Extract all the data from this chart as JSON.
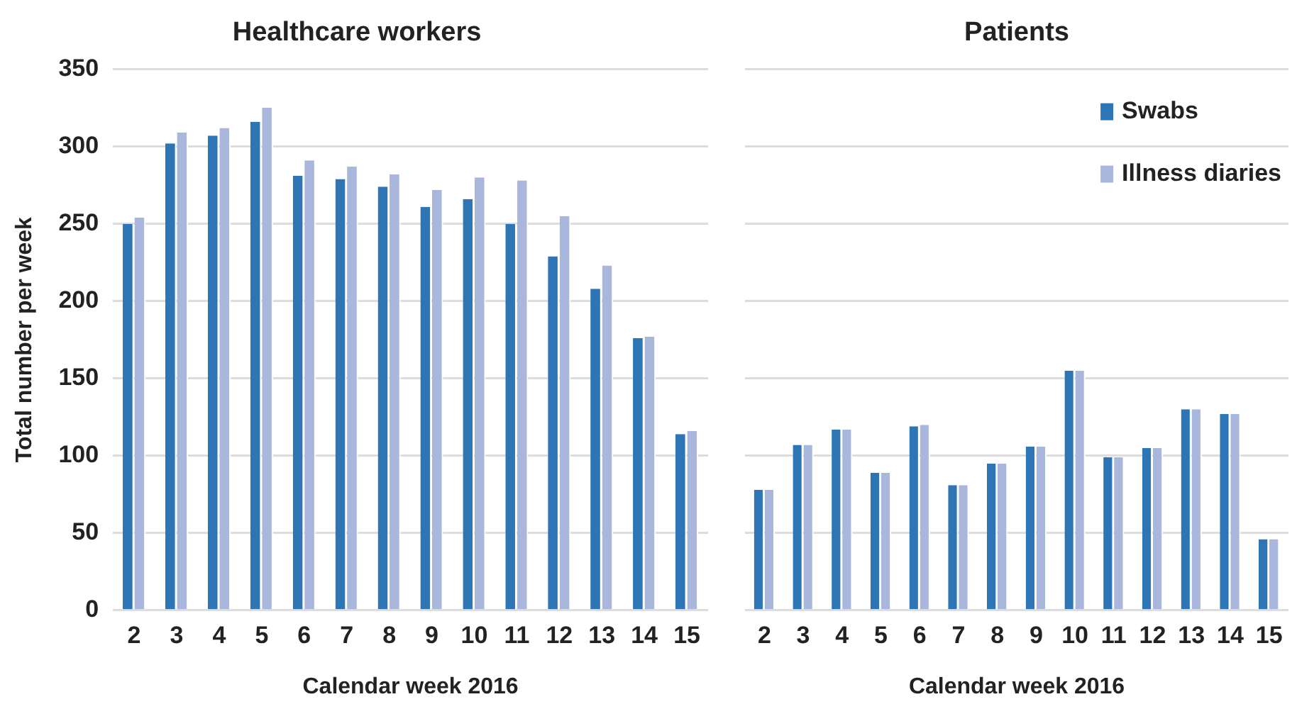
{
  "chart_data": [
    {
      "type": "bar",
      "title": "Healthcare workers",
      "xlabel": "Calendar week 2016",
      "ylabel": "Total number per week",
      "categories": [
        "2",
        "3",
        "4",
        "5",
        "6",
        "7",
        "8",
        "9",
        "10",
        "11",
        "12",
        "13",
        "14",
        "15"
      ],
      "series": [
        {
          "color": "#2e75b6",
          "values": [
            250,
            302,
            307,
            316,
            281,
            279,
            274,
            261,
            266,
            250,
            229,
            208,
            176,
            114
          ]
        },
        {
          "color": "#a9b7dc",
          "values": [
            254,
            309,
            312,
            325,
            291,
            287,
            282,
            272,
            280,
            278,
            255,
            223,
            177,
            116
          ]
        }
      ],
      "ylim": [
        0,
        350
      ],
      "yticks": [
        0,
        50,
        100,
        150,
        200,
        250,
        300,
        350
      ],
      "grid": "y",
      "legend": false
    },
    {
      "type": "bar",
      "title": "Patients",
      "xlabel": "Calendar week 2016",
      "categories": [
        "2",
        "3",
        "4",
        "5",
        "6",
        "7",
        "8",
        "9",
        "10",
        "11",
        "12",
        "13",
        "14",
        "15"
      ],
      "series": [
        {
          "name": "Swabs",
          "color": "#2e75b6",
          "values": [
            78,
            107,
            117,
            89,
            119,
            81,
            95,
            106,
            155,
            99,
            105,
            130,
            127,
            46
          ]
        },
        {
          "name": "Illness diaries",
          "color": "#a9b7dc",
          "values": [
            78,
            107,
            117,
            89,
            120,
            81,
            95,
            106,
            155,
            99,
            105,
            130,
            127,
            46
          ]
        }
      ],
      "ylim": [
        0,
        350
      ],
      "yticks": [
        0,
        50,
        100,
        150,
        200,
        250,
        300,
        350
      ],
      "grid": "y",
      "legend": "top right",
      "tick_labels": "x"
    }
  ]
}
